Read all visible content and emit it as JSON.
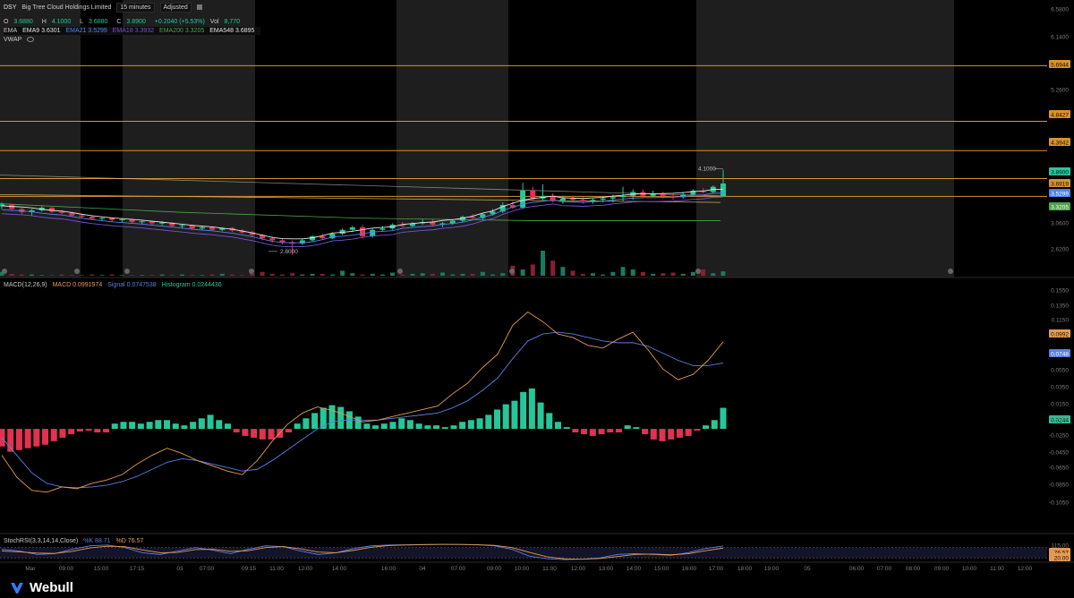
{
  "header": {
    "symbol": "DSY",
    "company": "Big Tree Cloud Holdings Limited",
    "interval": "15 minutes",
    "adjust": "Adjusted",
    "ohlc": {
      "o_label": "O",
      "o": "3.6880",
      "h_label": "H",
      "h": "4.1000",
      "l_label": "L",
      "l": "3.6880",
      "c_label": "C",
      "c": "3.8900",
      "chg": "+0.2040 (+5.53%)",
      "vol_label": "Vol",
      "vol": "8,770"
    },
    "ema": {
      "label": "EMA",
      "ema9": "EMA9 3.6301",
      "ema21": "EMA21 3.5299",
      "ema18": "EMA18 3.3932",
      "ema200": "EMA200 3.3205",
      "ema548": "EMA548 3.6895"
    },
    "vwap": "VWAP"
  },
  "macd_header": {
    "name": "MACD(12,26,9)",
    "macd": "MACD 0.0991974",
    "signal": "Signal 0.0747538",
    "histogram": "Histogram 0.0244436"
  },
  "stoch_header": {
    "name": "StochRSI(3,3,14,14,Close)",
    "k": "%K 88.71",
    "d": "%D 76.57"
  },
  "colors": {
    "up": "#26c69a",
    "down": "#e2324f",
    "orange": "#d9912b",
    "macd": "#e59a52",
    "signal": "#5b7fe0",
    "session": "#1e1e1e",
    "grid": "#1a1a1a",
    "ema_blue": "#4e82f2",
    "ema_green": "#4ea44a"
  },
  "price_axis": [
    "6.5800",
    "6.1400",
    "5.6944",
    "5.2600",
    "4.8427",
    "4.3942",
    "3.8900",
    "3.6919",
    "3.5299",
    "3.3205",
    "3.0600",
    "2.6200"
  ],
  "macd_axis": [
    "0.1550",
    "0.1350",
    "0.1150",
    "0.0992",
    "0.0748",
    "0.0550",
    "0.0350",
    "0.0244",
    "0.0150",
    "-0.0050",
    "-0.0250",
    "-0.0450",
    "-0.0650",
    "-0.0850",
    "-0.1050"
  ],
  "stoch_axis": [
    "115.00",
    "76.57",
    "20.00"
  ],
  "time_axis": [
    "Mar",
    "09:00",
    "15:00",
    "17:15",
    "03",
    "07:00",
    "09:15",
    "11:00",
    "12:00",
    "14:00",
    "16:00",
    "04",
    "07:00",
    "09:00",
    "10:00",
    "11:00",
    "12:00",
    "13:00",
    "14:00",
    "15:00",
    "16:00",
    "17:00",
    "18:00",
    "19:00",
    "05",
    "06:00",
    "07:00",
    "08:00",
    "09:00",
    "10:00",
    "11:00",
    "12:00"
  ],
  "annotations": {
    "high": "4.1000",
    "low": "2.8000"
  },
  "brand": "Webull",
  "chart_data": [
    {
      "type": "candlestick",
      "title": "DSY 15 minutes",
      "ylim": [
        2.45,
        6.7
      ],
      "horizontal_lines": [
        5.6944,
        4.8427,
        4.3942,
        3.965,
        3.6919
      ],
      "series": [
        {
          "name": "price",
          "points": [
            [
              3.54,
              3.6,
              3.5,
              3.57
            ],
            [
              3.57,
              3.58,
              3.48,
              3.5
            ],
            [
              3.5,
              3.52,
              3.42,
              3.45
            ],
            [
              3.45,
              3.5,
              3.4,
              3.48
            ],
            [
              3.48,
              3.55,
              3.46,
              3.52
            ],
            [
              3.52,
              3.53,
              3.44,
              3.46
            ],
            [
              3.46,
              3.48,
              3.42,
              3.44
            ],
            [
              3.44,
              3.46,
              3.38,
              3.4
            ],
            [
              3.4,
              3.43,
              3.36,
              3.38
            ],
            [
              3.38,
              3.4,
              3.33,
              3.35
            ],
            [
              3.35,
              3.38,
              3.32,
              3.36
            ],
            [
              3.36,
              3.37,
              3.31,
              3.33
            ],
            [
              3.33,
              3.36,
              3.3,
              3.34
            ],
            [
              3.34,
              3.35,
              3.28,
              3.3
            ],
            [
              3.3,
              3.33,
              3.27,
              3.31
            ],
            [
              3.31,
              3.32,
              3.26,
              3.28
            ],
            [
              3.28,
              3.31,
              3.25,
              3.29
            ],
            [
              3.29,
              3.3,
              3.22,
              3.24
            ],
            [
              3.24,
              3.27,
              3.2,
              3.25
            ],
            [
              3.25,
              3.26,
              3.18,
              3.2
            ],
            [
              3.2,
              3.24,
              3.17,
              3.22
            ],
            [
              3.22,
              3.23,
              3.16,
              3.18
            ],
            [
              3.18,
              3.22,
              3.16,
              3.21
            ],
            [
              3.21,
              3.22,
              3.15,
              3.17
            ],
            [
              3.17,
              3.19,
              3.12,
              3.14
            ],
            [
              3.14,
              3.16,
              3.08,
              3.1
            ],
            [
              3.1,
              3.12,
              3.02,
              3.05
            ],
            [
              3.05,
              3.08,
              2.98,
              3.02
            ],
            [
              3.02,
              3.05,
              2.96,
              2.99
            ],
            [
              2.99,
              3.02,
              2.8,
              2.97
            ],
            [
              2.97,
              3.04,
              2.95,
              3.02
            ],
            [
              3.02,
              3.1,
              3.0,
              3.08
            ],
            [
              3.08,
              3.12,
              3.03,
              3.05
            ],
            [
              3.05,
              3.14,
              3.04,
              3.12
            ],
            [
              3.12,
              3.2,
              3.1,
              3.18
            ],
            [
              3.18,
              3.24,
              3.15,
              3.22
            ],
            [
              3.22,
              3.26,
              3.05,
              3.08
            ],
            [
              3.08,
              3.2,
              3.06,
              3.18
            ],
            [
              3.18,
              3.24,
              3.16,
              3.2
            ],
            [
              3.2,
              3.28,
              3.18,
              3.26
            ],
            [
              3.26,
              3.3,
              3.22,
              3.24
            ],
            [
              3.24,
              3.3,
              3.22,
              3.28
            ],
            [
              3.28,
              3.34,
              3.26,
              3.3
            ],
            [
              3.3,
              3.34,
              3.24,
              3.26
            ],
            [
              3.26,
              3.3,
              3.22,
              3.28
            ],
            [
              3.28,
              3.34,
              3.26,
              3.32
            ],
            [
              3.32,
              3.4,
              3.3,
              3.38
            ],
            [
              3.38,
              3.42,
              3.34,
              3.36
            ],
            [
              3.36,
              3.44,
              3.34,
              3.42
            ],
            [
              3.42,
              3.5,
              3.4,
              3.46
            ],
            [
              3.46,
              3.6,
              3.44,
              3.56
            ],
            [
              3.56,
              3.62,
              3.5,
              3.52
            ],
            [
              3.52,
              3.9,
              3.5,
              3.78
            ],
            [
              3.78,
              3.84,
              3.62,
              3.66
            ],
            [
              3.66,
              3.88,
              3.64,
              3.7
            ],
            [
              3.7,
              3.74,
              3.6,
              3.62
            ],
            [
              3.62,
              3.7,
              3.58,
              3.66
            ],
            [
              3.66,
              3.7,
              3.6,
              3.64
            ],
            [
              3.64,
              3.68,
              3.58,
              3.62
            ],
            [
              3.62,
              3.66,
              3.58,
              3.64
            ],
            [
              3.64,
              3.7,
              3.6,
              3.66
            ],
            [
              3.66,
              3.72,
              3.6,
              3.68
            ],
            [
              3.68,
              3.84,
              3.62,
              3.7
            ],
            [
              3.7,
              3.8,
              3.64,
              3.76
            ],
            [
              3.76,
              3.8,
              3.66,
              3.7
            ],
            [
              3.7,
              3.78,
              3.68,
              3.74
            ],
            [
              3.74,
              3.76,
              3.66,
              3.7
            ],
            [
              3.7,
              3.74,
              3.64,
              3.68
            ],
            [
              3.68,
              3.76,
              3.66,
              3.72
            ],
            [
              3.72,
              3.8,
              3.7,
              3.78
            ],
            [
              3.78,
              3.82,
              3.74,
              3.76
            ],
            [
              3.76,
              3.86,
              3.74,
              3.84
            ],
            [
              3.69,
              4.1,
              3.69,
              3.89
            ]
          ]
        }
      ]
    },
    {
      "type": "line",
      "title": "MACD(12,26,9)",
      "ylim": [
        -0.115,
        0.16
      ],
      "series": [
        {
          "name": "MACD",
          "values": [
            -0.03,
            -0.055,
            -0.07,
            -0.072,
            -0.066,
            -0.068,
            -0.062,
            -0.058,
            -0.052,
            -0.04,
            -0.03,
            -0.022,
            -0.028,
            -0.036,
            -0.042,
            -0.048,
            -0.052,
            -0.036,
            -0.014,
            0.005,
            0.018,
            0.025,
            0.021,
            0.015,
            0.008,
            0.01,
            0.014,
            0.018,
            0.022,
            0.026,
            0.04,
            0.052,
            0.07,
            0.085,
            0.118,
            0.133,
            0.122,
            0.108,
            0.104,
            0.095,
            0.092,
            0.102,
            0.11,
            0.09,
            0.068,
            0.056,
            0.062,
            0.078,
            0.099
          ]
        },
        {
          "name": "Signal",
          "values": [
            -0.01,
            -0.03,
            -0.05,
            -0.062,
            -0.066,
            -0.067,
            -0.066,
            -0.064,
            -0.06,
            -0.054,
            -0.046,
            -0.038,
            -0.034,
            -0.036,
            -0.04,
            -0.044,
            -0.048,
            -0.046,
            -0.036,
            -0.024,
            -0.012,
            0.0,
            0.008,
            0.01,
            0.01,
            0.01,
            0.012,
            0.014,
            0.016,
            0.018,
            0.024,
            0.032,
            0.044,
            0.058,
            0.08,
            0.1,
            0.108,
            0.11,
            0.108,
            0.104,
            0.1,
            0.098,
            0.098,
            0.094,
            0.086,
            0.078,
            0.072,
            0.072,
            0.075
          ]
        },
        {
          "name": "Histogram",
          "values": [
            -0.02,
            -0.026,
            -0.024,
            -0.022,
            -0.02,
            -0.018,
            -0.014,
            -0.01,
            -0.006,
            -0.003,
            -0.002,
            -0.004,
            -0.004,
            0.006,
            0.008,
            0.008,
            0.006,
            0.008,
            0.01,
            0.01,
            0.006,
            0.004,
            0.008,
            0.012,
            0.016,
            0.01,
            0.006,
            -0.004,
            -0.008,
            -0.01,
            -0.012,
            -0.012,
            -0.01,
            -0.004,
            0.006,
            0.012,
            0.018,
            0.024,
            0.027,
            0.025,
            0.02,
            0.014,
            0.006,
            0.004,
            0.006,
            0.008,
            0.012,
            0.01,
            0.006,
            0.004,
            0.004,
            0.002,
            0.004,
            0.008,
            0.01,
            0.012,
            0.016,
            0.022,
            0.028,
            0.032,
            0.042,
            0.046,
            0.03,
            0.018,
            0.008,
            0.002,
            -0.004,
            -0.006,
            -0.008,
            -0.006,
            -0.004,
            -0.004,
            0.004,
            0.002,
            -0.006,
            -0.012,
            -0.014,
            -0.012,
            -0.01,
            -0.008,
            -0.002,
            0.004,
            0.01,
            0.024
          ]
        }
      ]
    },
    {
      "type": "line",
      "title": "StochRSI(3,3,14,14,Close)",
      "ylim": [
        -5,
        120
      ],
      "series": [
        {
          "name": "%K",
          "values": [
            70,
            60,
            40,
            45,
            70,
            90,
            95,
            80,
            50,
            40,
            60,
            80,
            65,
            45,
            70,
            90,
            85,
            60,
            40,
            50,
            75,
            90,
            95,
            96,
            98,
            99,
            98,
            96,
            90,
            70,
            30,
            15,
            10,
            12,
            20,
            40,
            45,
            40,
            35,
            50,
            75,
            89
          ]
        },
        {
          "name": "%D",
          "values": [
            60,
            55,
            48,
            46,
            58,
            78,
            88,
            85,
            66,
            50,
            52,
            68,
            70,
            58,
            62,
            80,
            86,
            72,
            54,
            50,
            64,
            82,
            92,
            95,
            97,
            98,
            98,
            97,
            93,
            80,
            52,
            26,
            15,
            12,
            16,
            28,
            40,
            42,
            38,
            44,
            62,
            77
          ]
        }
      ]
    }
  ]
}
